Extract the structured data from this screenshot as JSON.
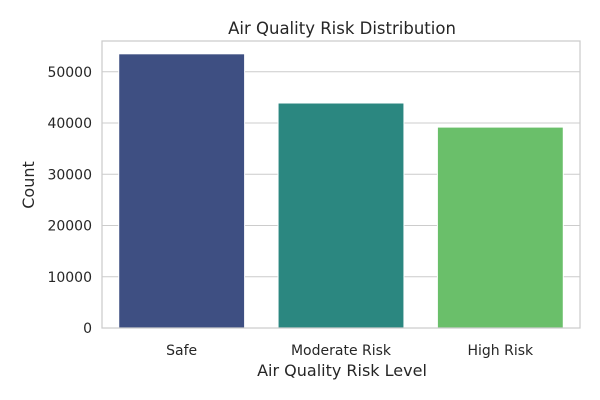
{
  "chart_data": {
    "type": "bar",
    "title": "Air Quality Risk Distribution",
    "xlabel": "Air Quality Risk Level",
    "ylabel": "Count",
    "categories": [
      "Safe",
      "Moderate Risk",
      "High Risk"
    ],
    "values": [
      53500,
      43900,
      39200
    ],
    "colors": [
      "#3e4f82",
      "#2b8780",
      "#6abf6a"
    ],
    "ylim": [
      0,
      56000
    ],
    "yticks": [
      0,
      10000,
      20000,
      30000,
      40000,
      50000
    ],
    "grid": "horizontal"
  }
}
